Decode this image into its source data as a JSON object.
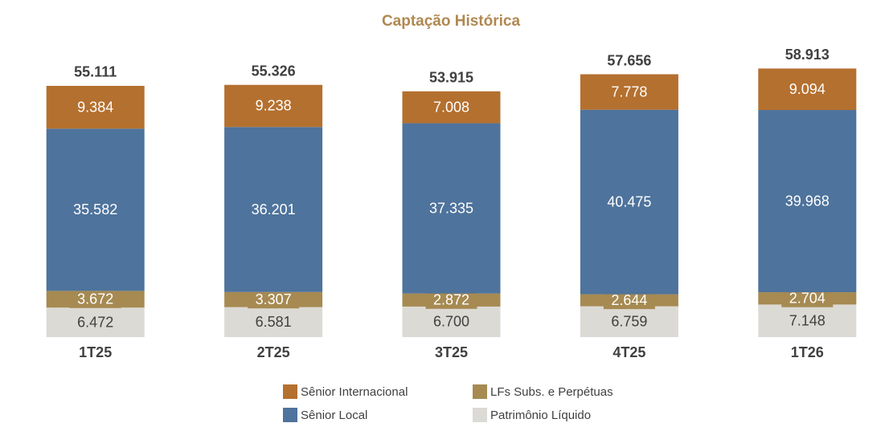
{
  "chart_data": {
    "type": "stacked_bar",
    "title": "Captação Histórica",
    "categories": [
      "1T25",
      "2T25",
      "3T25",
      "4T25",
      "1T26"
    ],
    "series": [
      {
        "name": "Sênior Internacional",
        "color": "#b4702f",
        "values": [
          9.384,
          9.238,
          7.008,
          7.778,
          9.094
        ],
        "value_labels": [
          "9.384",
          "9.238",
          "7.008",
          "7.778",
          "9.094"
        ]
      },
      {
        "name": "LFs Subs. e Perpétuas",
        "color": "#a68a52",
        "values": [
          3.672,
          3.307,
          2.872,
          2.644,
          2.704
        ],
        "value_labels": [
          "3.672",
          "3.307",
          "2.872",
          "2.644",
          "2.704"
        ]
      },
      {
        "name": "Sênior Local",
        "color": "#4e739c",
        "values": [
          35.582,
          36.201,
          37.335,
          40.475,
          39.968
        ],
        "value_labels": [
          "35.582",
          "36.201",
          "37.335",
          "40.475",
          "39.968"
        ]
      },
      {
        "name": "Patrimônio Líquido",
        "color": "#dcdad5",
        "values": [
          6.472,
          6.581,
          6.7,
          6.759,
          7.148
        ],
        "value_labels": [
          "6.472",
          "6.581",
          "6.700",
          "6.759",
          "7.148"
        ]
      }
    ],
    "totals": [
      55.111,
      55.326,
      53.915,
      57.656,
      58.913
    ]
  }
}
